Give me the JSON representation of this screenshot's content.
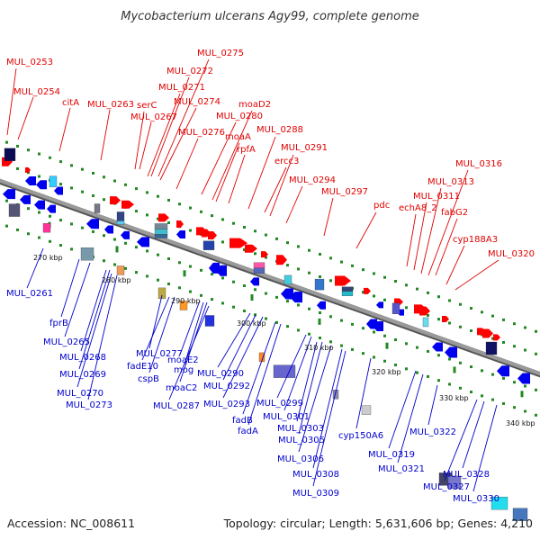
{
  "title": "Mycobacterium ulcerans Agy99, complete genome",
  "footer": {
    "accession": "Accession: NC_008611",
    "summary": "Topology: circular; Length: 5,631,606 bp; Genes: 4,210"
  },
  "colors": {
    "forward_label": "#e00000",
    "reverse_label": "#0000cc",
    "forward_gene": "#ff0000",
    "reverse_gene": "#0000ee",
    "backbone": "#888888",
    "tick": "#228822"
  },
  "kbp_ticks": [
    "270 kbp",
    "280 kbp",
    "290 kbp",
    "300 kbp",
    "310 kbp",
    "320 kbp",
    "330 kbp",
    "340 kbp"
  ],
  "top_labels": [
    "MUL_0253",
    "MUL_0254",
    "citA",
    "MUL_0263",
    "serC",
    "MUL_0267",
    "MUL_0275",
    "MUL_0272",
    "MUL_0271",
    "MUL_0274",
    "MUL_0280",
    "MUL_0276",
    "moaA",
    "rpfA",
    "moaD2",
    "MUL_0288",
    "ercc3",
    "MUL_0291",
    "MUL_0294",
    "MUL_0297",
    "pdc",
    "echA8_2",
    "MUL_0311",
    "MUL_0313",
    "fabG2",
    "MUL_0316",
    "cyp188A3",
    "MUL_0320"
  ],
  "bottom_labels": [
    "MUL_0261",
    "fprB",
    "MUL_0265",
    "MUL_0268",
    "MUL_0269",
    "MUL_0270",
    "MUL_0273",
    "MUL_0277",
    "fadE10",
    "cspB",
    "moaE2",
    "mog",
    "moaC2",
    "MUL_0287",
    "MUL_0290",
    "MUL_0292",
    "MUL_0293",
    "fadB",
    "fadA",
    "MUL_0299",
    "MUL_0301",
    "MUL_0303",
    "MUL_0305",
    "MUL_0306",
    "MUL_0308",
    "MUL_0309",
    "cyp150A6",
    "MUL_0319",
    "MUL_0321",
    "MUL_0322",
    "MUL_0327",
    "MUL_0328",
    "MUL_0330"
  ]
}
